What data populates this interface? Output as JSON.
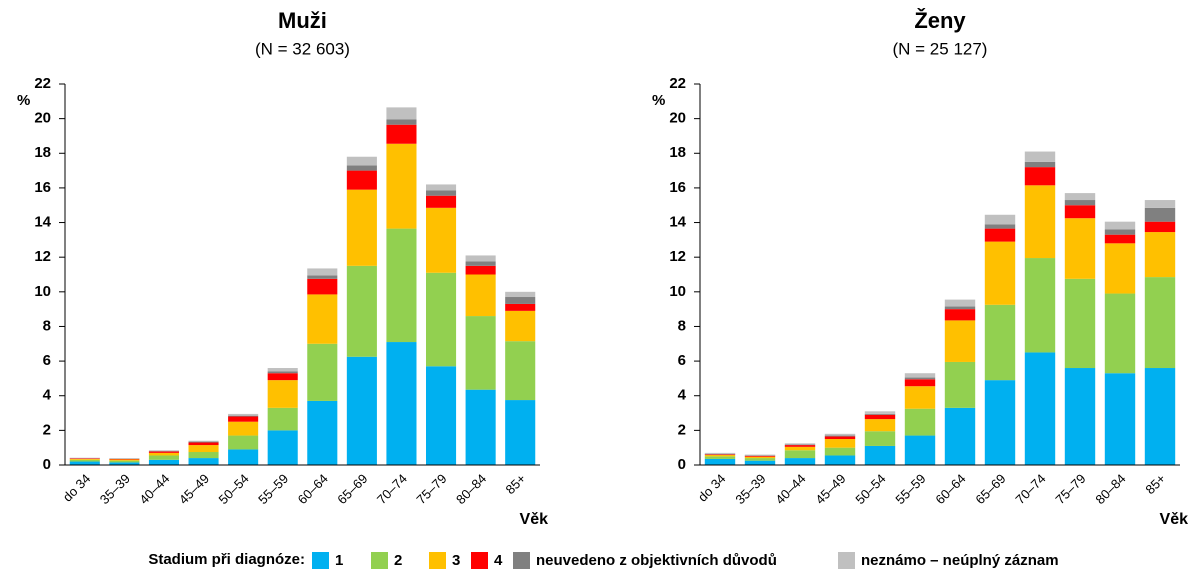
{
  "chart_data": [
    {
      "type": "bar",
      "stacked": true,
      "title": "Muži",
      "subtitle": "(N = 32 603)",
      "y_label": "%",
      "x_label": "Věk",
      "categories": [
        "do 34",
        "35–39",
        "40–44",
        "45–49",
        "50–54",
        "55–59",
        "60–64",
        "65–69",
        "70–74",
        "75–79",
        "80–84",
        "85+"
      ],
      "ylim": [
        0,
        22
      ],
      "yticks": [
        0,
        2,
        4,
        6,
        8,
        10,
        12,
        14,
        16,
        18,
        20,
        22
      ],
      "series": [
        {
          "name": "1",
          "color": "#00b0f0",
          "values": [
            0.2,
            0.15,
            0.3,
            0.4,
            0.9,
            2.0,
            3.7,
            6.25,
            7.1,
            5.7,
            4.35,
            3.75
          ]
        },
        {
          "name": "2",
          "color": "#92d050",
          "values": [
            0.1,
            0.1,
            0.25,
            0.35,
            0.8,
            1.3,
            3.3,
            5.25,
            6.55,
            5.4,
            4.25,
            3.4
          ]
        },
        {
          "name": "3",
          "color": "#ffc000",
          "values": [
            0.05,
            0.07,
            0.15,
            0.4,
            0.8,
            1.6,
            2.85,
            4.4,
            4.9,
            3.75,
            2.4,
            1.75
          ]
        },
        {
          "name": "4",
          "color": "#ff0000",
          "values": [
            0.03,
            0.03,
            0.08,
            0.15,
            0.3,
            0.4,
            0.9,
            1.1,
            1.1,
            0.7,
            0.5,
            0.4
          ]
        },
        {
          "name": "neuvedeno z objektivních důvodů",
          "color": "#808080",
          "values": [
            0.01,
            0.01,
            0.02,
            0.05,
            0.05,
            0.1,
            0.2,
            0.3,
            0.3,
            0.3,
            0.25,
            0.4
          ]
        },
        {
          "name": "neznámo – neúplný záznam",
          "color": "#c0c0c0",
          "values": [
            0.03,
            0.04,
            0.05,
            0.05,
            0.1,
            0.2,
            0.4,
            0.5,
            0.7,
            0.35,
            0.35,
            0.3
          ]
        }
      ]
    },
    {
      "type": "bar",
      "stacked": true,
      "title": "Ženy",
      "subtitle": "(N = 25 127)",
      "y_label": "%",
      "x_label": "Věk",
      "categories": [
        "do 34",
        "35–39",
        "40–44",
        "45–49",
        "50–54",
        "55–59",
        "60–64",
        "65–69",
        "70–74",
        "75–79",
        "80–84",
        "85+"
      ],
      "ylim": [
        0,
        22
      ],
      "yticks": [
        0,
        2,
        4,
        6,
        8,
        10,
        12,
        14,
        16,
        18,
        20,
        22
      ],
      "series": [
        {
          "name": "1",
          "color": "#00b0f0",
          "values": [
            0.35,
            0.25,
            0.4,
            0.55,
            1.1,
            1.7,
            3.3,
            4.9,
            6.5,
            5.6,
            5.3,
            5.6
          ]
        },
        {
          "name": "2",
          "color": "#92d050",
          "values": [
            0.15,
            0.15,
            0.45,
            0.45,
            0.85,
            1.55,
            2.65,
            4.35,
            5.45,
            5.15,
            4.6,
            5.25
          ]
        },
        {
          "name": "3",
          "color": "#ffc000",
          "values": [
            0.08,
            0.08,
            0.2,
            0.5,
            0.7,
            1.3,
            2.4,
            3.65,
            4.2,
            3.5,
            2.9,
            2.6
          ]
        },
        {
          "name": "4",
          "color": "#ff0000",
          "values": [
            0.03,
            0.05,
            0.1,
            0.15,
            0.25,
            0.4,
            0.65,
            0.75,
            1.05,
            0.75,
            0.5,
            0.6
          ]
        },
        {
          "name": "neuvedeno z objektivních důvodů",
          "color": "#808080",
          "values": [
            0.02,
            0.02,
            0.03,
            0.05,
            0.05,
            0.1,
            0.15,
            0.25,
            0.3,
            0.3,
            0.3,
            0.8
          ]
        },
        {
          "name": "neznámo – neúplný záznam",
          "color": "#c0c0c0",
          "values": [
            0.07,
            0.05,
            0.07,
            0.1,
            0.15,
            0.25,
            0.4,
            0.55,
            0.6,
            0.4,
            0.45,
            0.45
          ]
        }
      ]
    }
  ],
  "legend": {
    "title": "Stadium při diagnóze:"
  }
}
